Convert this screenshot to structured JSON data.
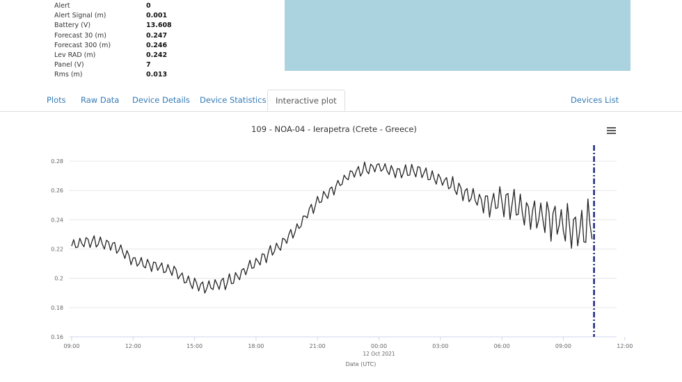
{
  "info": [
    {
      "label": "Alert",
      "value": "0"
    },
    {
      "label": "Alert Signal (m)",
      "value": "0.001"
    },
    {
      "label": "Battery (V)",
      "value": "13.608"
    },
    {
      "label": "Forecast 30 (m)",
      "value": "0.247"
    },
    {
      "label": "Forecast 300 (m)",
      "value": "0.246"
    },
    {
      "label": "Lev RAD (m)",
      "value": "0.242"
    },
    {
      "label": "Panel (V)",
      "value": "7"
    },
    {
      "label": "Rms (m)",
      "value": "0.013"
    }
  ],
  "map": {
    "sea_color": "#aad3df"
  },
  "tabs": [
    {
      "label": "Plots"
    },
    {
      "label": "Raw Data"
    },
    {
      "label": "Device Details"
    },
    {
      "label": "Device Statistics"
    },
    {
      "label": "Interactive plot",
      "active": true
    }
  ],
  "devices_list_label": "Devices List",
  "menu_icon": "hamburger-icon",
  "chart_data": {
    "type": "line",
    "title": "109 - NOA-04 - Ierapetra (Crete - Greece)",
    "xlabel": "Date (UTC)",
    "ylabel": "",
    "x_tick_labels": [
      "09:00",
      "12:00",
      "15:00",
      "18:00",
      "21:00",
      "00:00",
      "03:00",
      "06:00",
      "09:00",
      "12:00"
    ],
    "x_date_label": "12 Oct 2021",
    "y_tick_labels": [
      "0.16",
      "0.18",
      "0.2",
      "0.22",
      "0.24",
      "0.26",
      "0.28"
    ],
    "ylim": [
      0.16,
      0.29
    ],
    "xlim_hours": [
      8.9,
      35.6
    ],
    "line_color": "#222222",
    "marker_color": "#1a237e",
    "marker_x_hours": 34.5,
    "grid": true,
    "series": [
      {
        "x": [
          9.0,
          9.5,
          10.0,
          10.5,
          11.0,
          11.5,
          12.0,
          12.5,
          13.0,
          13.5,
          14.0,
          14.5,
          15.0,
          15.5,
          16.0,
          16.5,
          17.0,
          17.5,
          18.0,
          18.5,
          19.0,
          19.5,
          20.0,
          20.5,
          21.0,
          21.5,
          22.0,
          22.5,
          23.0,
          23.5,
          24.0,
          24.5,
          25.0,
          25.5,
          26.0,
          26.5,
          27.0,
          27.5,
          28.0,
          28.5,
          29.0,
          29.5,
          30.0,
          30.5,
          31.0,
          31.5,
          32.0,
          32.5,
          33.0,
          33.5,
          34.0,
          34.5
        ],
        "y": [
          0.222,
          0.224,
          0.225,
          0.224,
          0.223,
          0.219,
          0.212,
          0.21,
          0.209,
          0.207,
          0.205,
          0.199,
          0.196,
          0.194,
          0.195,
          0.197,
          0.2,
          0.206,
          0.211,
          0.216,
          0.221,
          0.227,
          0.234,
          0.244,
          0.252,
          0.258,
          0.264,
          0.27,
          0.273,
          0.275,
          0.276,
          0.274,
          0.272,
          0.273,
          0.273,
          0.27,
          0.267,
          0.264,
          0.26,
          0.256,
          0.253,
          0.252,
          0.253,
          0.25,
          0.247,
          0.244,
          0.243,
          0.241,
          0.237,
          0.234,
          0.232,
          0.242
        ]
      }
    ]
  }
}
